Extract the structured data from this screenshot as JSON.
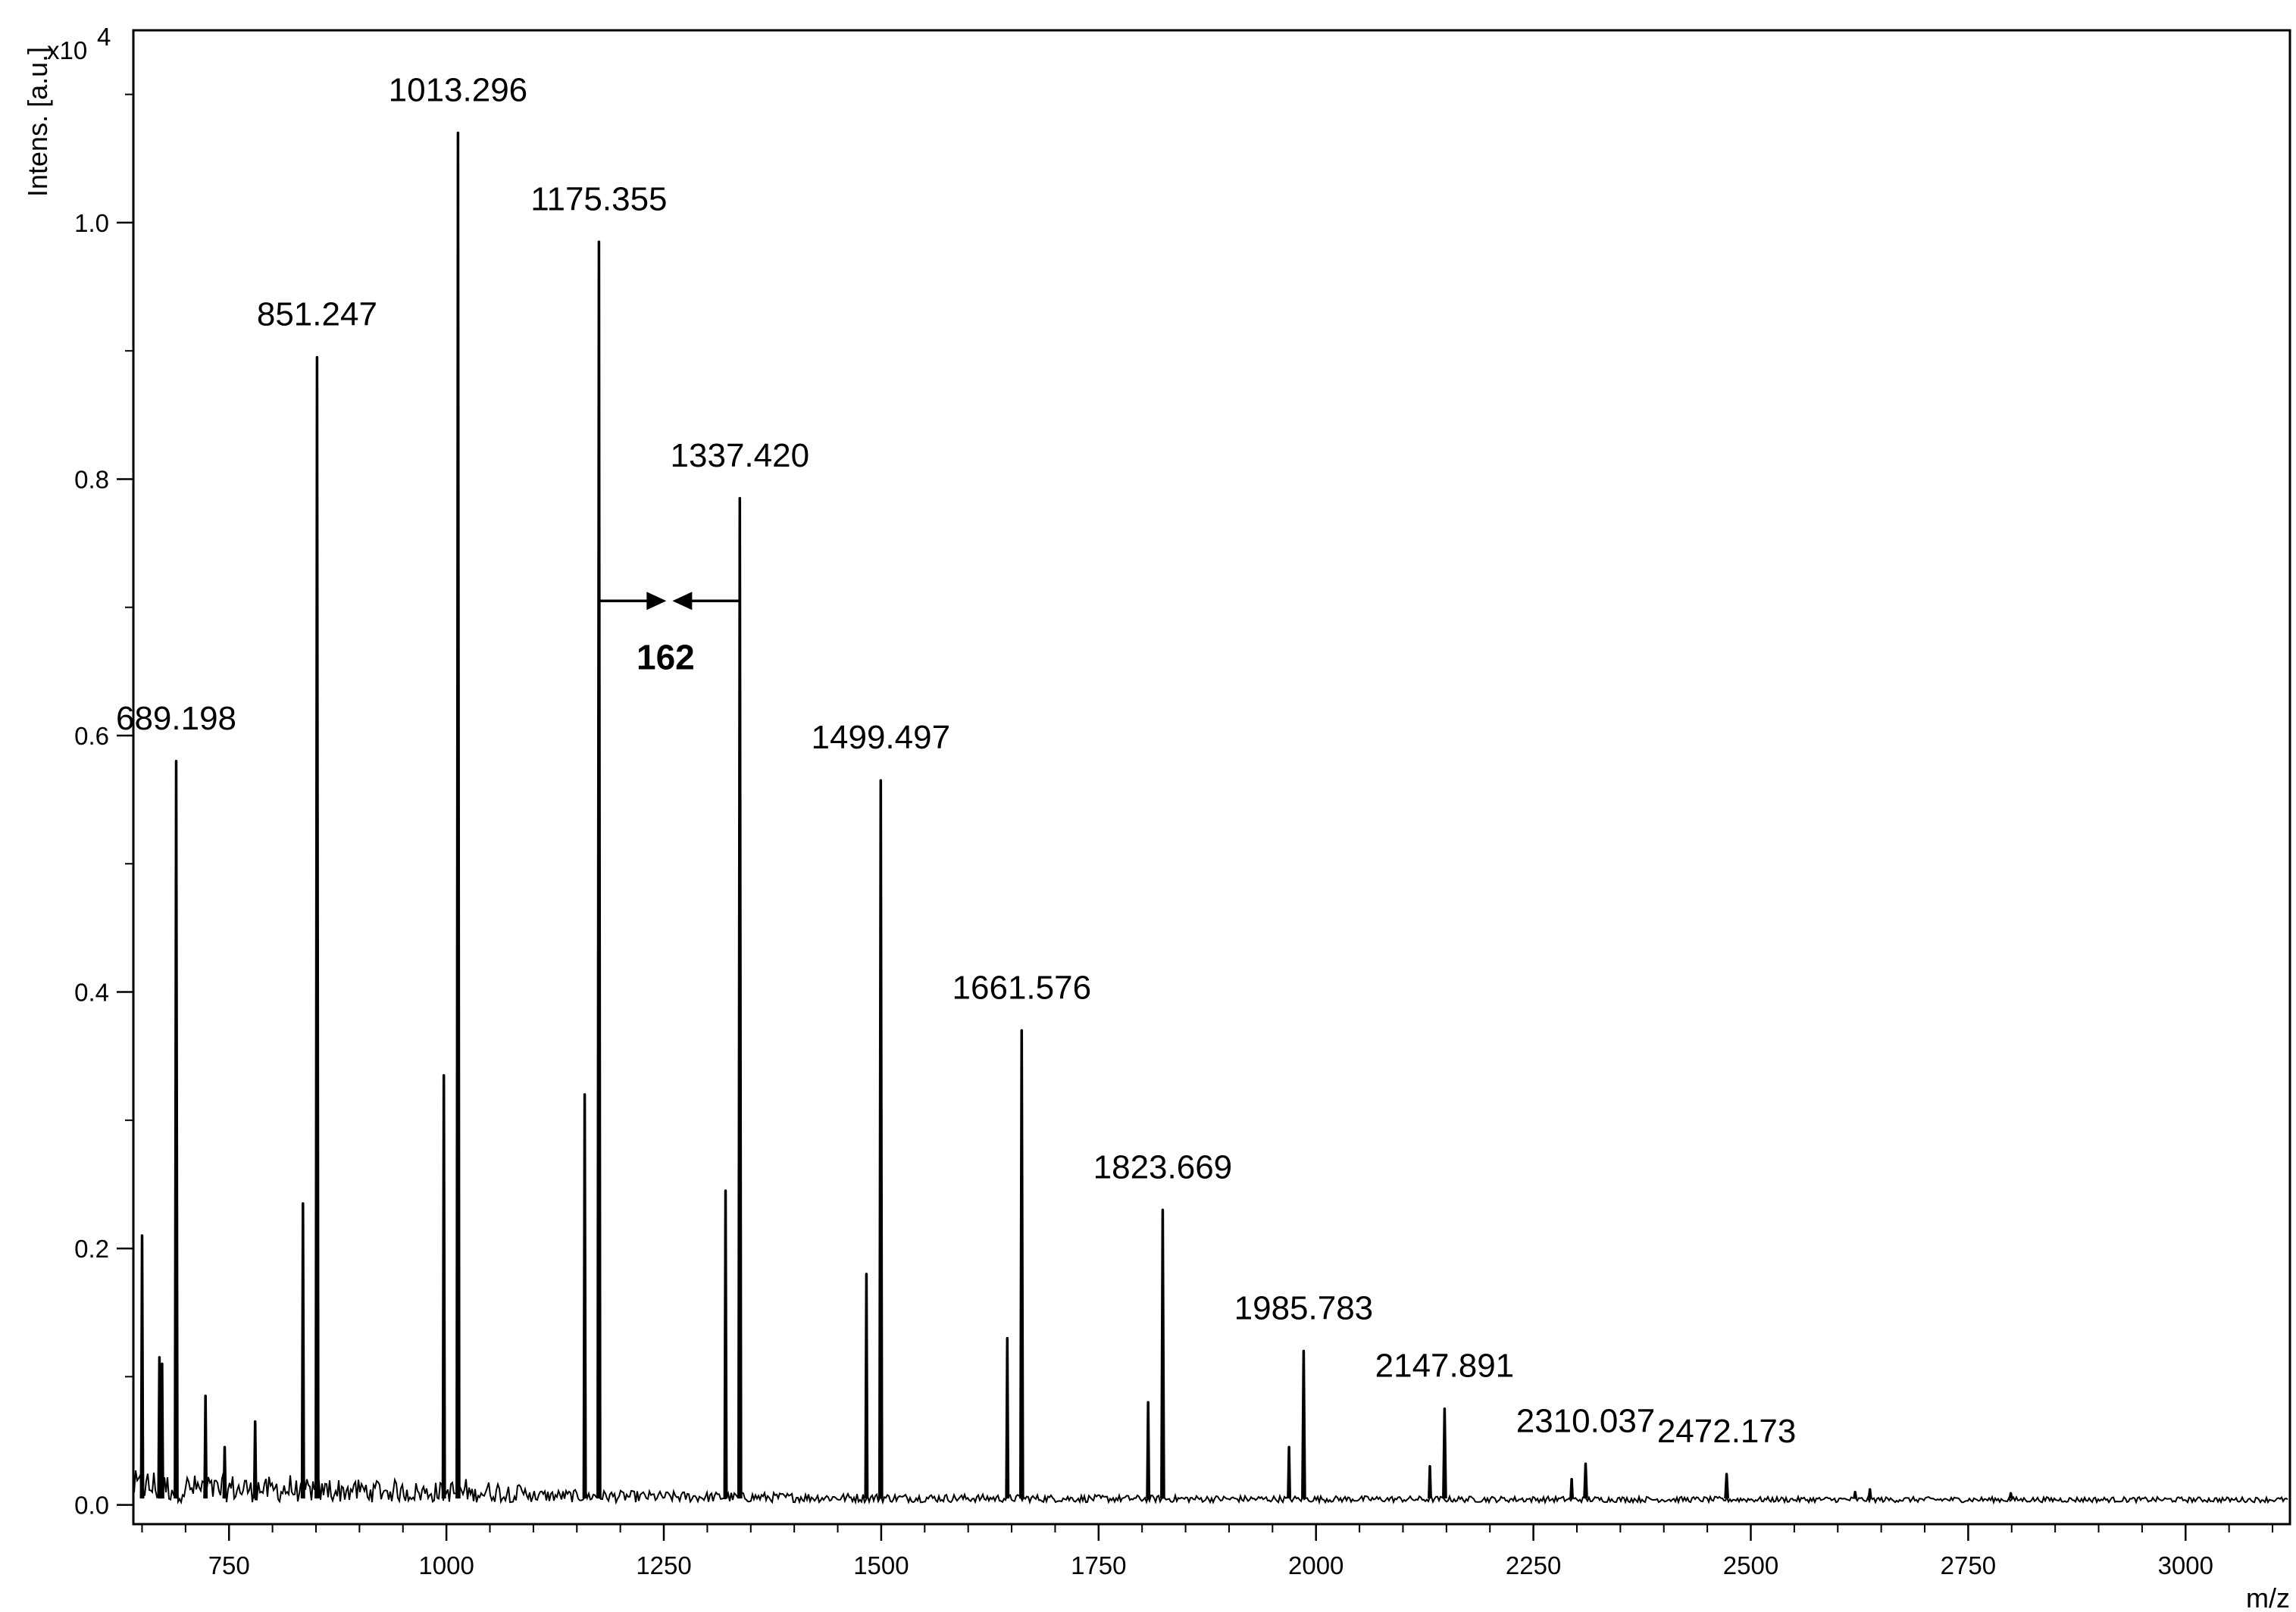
{
  "chart_data": {
    "type": "line",
    "xlabel": "m/z",
    "ylabel": "Intens. [a.u.]",
    "y_multiplier": "x10",
    "y_multiplier_exp": "4",
    "xlim": [
      640,
      3120
    ],
    "ylim": [
      -0.015,
      1.15
    ],
    "x_ticks": [
      750,
      1000,
      1250,
      1500,
      1750,
      2000,
      2250,
      2500,
      2750,
      3000
    ],
    "x_tick_labels": [
      "750",
      "1000",
      "1250",
      "1500",
      "1750",
      "2000",
      "2250",
      "2500",
      "2750",
      "3000"
    ],
    "y_ticks": [
      0.0,
      0.2,
      0.4,
      0.6,
      0.8,
      1.0
    ],
    "y_tick_labels": [
      "0.0",
      "0.2",
      "0.4",
      "0.6",
      "0.8",
      "1.0"
    ],
    "grid": false,
    "series": [
      {
        "peaks": [
          {
            "mz": 689.198,
            "intensity": 0.58
          },
          {
            "mz": 851.247,
            "intensity": 0.895
          },
          {
            "mz": 1013.296,
            "intensity": 1.07
          },
          {
            "mz": 1175.355,
            "intensity": 0.985
          },
          {
            "mz": 1337.42,
            "intensity": 0.785
          },
          {
            "mz": 1499.497,
            "intensity": 0.565
          },
          {
            "mz": 1661.576,
            "intensity": 0.37
          },
          {
            "mz": 1823.669,
            "intensity": 0.23
          },
          {
            "mz": 1985.783,
            "intensity": 0.12
          },
          {
            "mz": 2147.891,
            "intensity": 0.075
          },
          {
            "mz": 2310.037,
            "intensity": 0.032
          },
          {
            "mz": 2472.173,
            "intensity": 0.024
          }
        ],
        "minor_peaks": [
          {
            "mz": 650,
            "intensity": 0.21
          },
          {
            "mz": 670,
            "intensity": 0.115
          },
          {
            "mz": 673,
            "intensity": 0.11
          },
          {
            "mz": 723,
            "intensity": 0.085
          },
          {
            "mz": 745,
            "intensity": 0.045
          },
          {
            "mz": 780,
            "intensity": 0.065
          },
          {
            "mz": 835,
            "intensity": 0.235
          },
          {
            "mz": 997,
            "intensity": 0.335
          },
          {
            "mz": 1159,
            "intensity": 0.32
          },
          {
            "mz": 1321,
            "intensity": 0.245
          },
          {
            "mz": 1483,
            "intensity": 0.18
          },
          {
            "mz": 1645,
            "intensity": 0.13
          },
          {
            "mz": 1807,
            "intensity": 0.08
          },
          {
            "mz": 1969,
            "intensity": 0.045
          },
          {
            "mz": 2131,
            "intensity": 0.03
          },
          {
            "mz": 2294,
            "intensity": 0.02
          },
          {
            "mz": 2620,
            "intensity": 0.01
          },
          {
            "mz": 2637,
            "intensity": 0.012
          },
          {
            "mz": 2799,
            "intensity": 0.009
          }
        ]
      }
    ],
    "peak_labels": [
      {
        "text": "689.198",
        "mz": 689.198,
        "intensity": 0.58
      },
      {
        "text": "851.247",
        "mz": 851.247,
        "intensity": 0.895
      },
      {
        "text": "1013.296",
        "mz": 1013.296,
        "intensity": 1.07
      },
      {
        "text": "1175.355",
        "mz": 1175.355,
        "intensity": 0.985
      },
      {
        "text": "1337.420",
        "mz": 1337.42,
        "intensity": 0.785
      },
      {
        "text": "1499.497",
        "mz": 1499.497,
        "intensity": 0.565
      },
      {
        "text": "1661.576",
        "mz": 1661.576,
        "intensity": 0.37
      },
      {
        "text": "1823.669",
        "mz": 1823.669,
        "intensity": 0.23
      },
      {
        "text": "1985.783",
        "mz": 1985.783,
        "intensity": 0.12
      },
      {
        "text": "2147.891",
        "mz": 2147.891,
        "intensity": 0.075
      },
      {
        "text": "2310.037",
        "mz": 2310.037,
        "intensity": 0.032
      },
      {
        "text": "2472.173",
        "mz": 2472.173,
        "intensity": 0.024
      }
    ],
    "annotations": [
      {
        "text": "162",
        "from_mz": 1175.355,
        "to_mz": 1337.42,
        "intensity": 0.705
      }
    ]
  }
}
